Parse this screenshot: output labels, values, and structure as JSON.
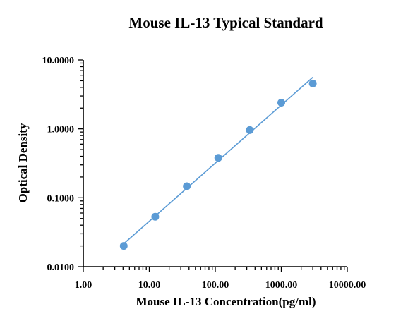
{
  "chart_data": {
    "type": "scatter",
    "title": "Mouse IL-13 Typical Standard",
    "xlabel": "Mouse IL-13 Concentration(pg/ml)",
    "ylabel": "Optical Density",
    "x_scale": "log",
    "y_scale": "log",
    "xlim": [
      1,
      10000
    ],
    "ylim": [
      0.01,
      10
    ],
    "x_ticks": [
      1,
      10,
      100,
      1000,
      10000
    ],
    "x_tick_labels": [
      "1.00",
      "10.00",
      "100.00",
      "1000.00",
      "10000.00"
    ],
    "y_ticks": [
      0.01,
      0.1,
      1,
      10
    ],
    "y_tick_labels": [
      "0.0100",
      "0.1000",
      "1.0000",
      "10.0000"
    ],
    "grid": false,
    "series": [
      {
        "x": [
          4.1,
          12.3,
          37,
          111,
          333,
          1000,
          3000
        ],
        "y": [
          0.02,
          0.053,
          0.147,
          0.38,
          0.96,
          2.4,
          4.55
        ]
      }
    ],
    "fit_line": {
      "x": [
        4.1,
        3000
      ],
      "y": [
        0.0215,
        5.6
      ]
    },
    "colors": {
      "series": "#5b9bd5",
      "axis": "#000000"
    }
  }
}
